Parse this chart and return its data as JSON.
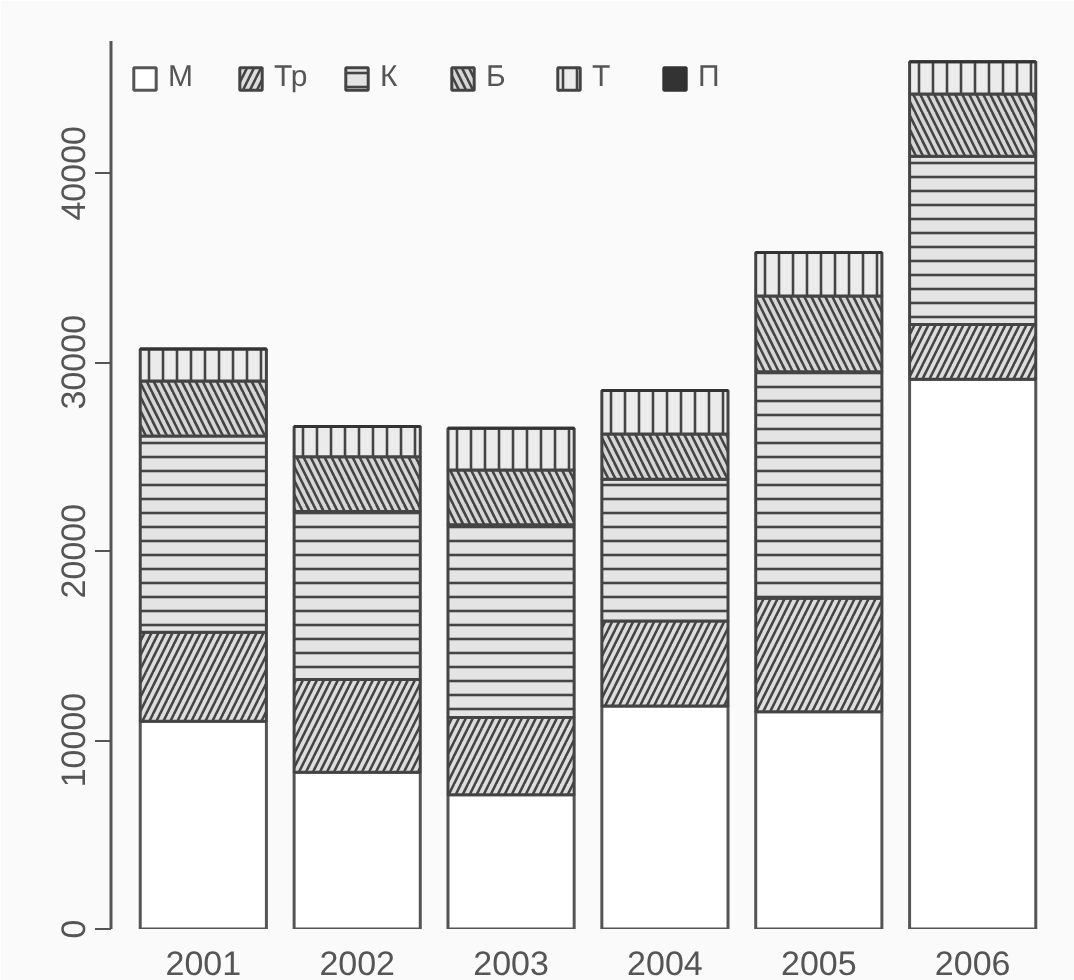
{
  "chart_data": {
    "type": "bar",
    "stacked": true,
    "categories": [
      "2001",
      "2002",
      "2003",
      "2004",
      "2005",
      "2006"
    ],
    "series": [
      {
        "name": "М",
        "color": "#ffffff",
        "values": [
          11000,
          8300,
          7100,
          11800,
          11500,
          29100
        ]
      },
      {
        "name": "Тр",
        "color": "#dddddd",
        "values": [
          4700,
          4900,
          4100,
          4500,
          6000,
          2900
        ]
      },
      {
        "name": "К",
        "color": "#e4e4e4",
        "values": [
          10400,
          8900,
          10200,
          7500,
          12000,
          8900
        ]
      },
      {
        "name": "Б",
        "color": "#d6d6d6",
        "values": [
          2900,
          2900,
          2900,
          2400,
          4000,
          3300
        ]
      },
      {
        "name": "Т",
        "color": "#ebebeb",
        "values": [
          1700,
          1600,
          2200,
          2300,
          2300,
          1700
        ]
      },
      {
        "name": "П",
        "color": "#333333",
        "values": [
          0,
          0,
          0,
          0,
          0,
          0
        ]
      }
    ],
    "ylim": [
      0,
      47000
    ],
    "yticks": [
      0,
      10000,
      20000,
      30000,
      40000
    ],
    "legend": "top left",
    "grid": false
  }
}
